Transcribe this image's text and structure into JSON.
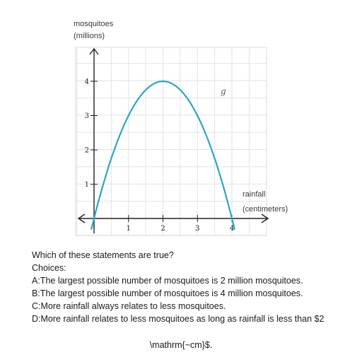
{
  "chart_data": {
    "type": "line",
    "y_axis_label_line1": "mosquitoes",
    "y_axis_label_line2": "(millions)",
    "x_axis_label_line1": "rainfall",
    "x_axis_label_line2": "(centimeters)",
    "x_ticks": [
      "1",
      "2",
      "3",
      "4"
    ],
    "y_ticks": [
      "1",
      "2",
      "3",
      "4"
    ],
    "xlim": [
      0,
      5
    ],
    "ylim": [
      0,
      5
    ],
    "grid": true,
    "series": [
      {
        "name": "g",
        "color": "#2aa7c5",
        "function": "y = 4x - x^2",
        "vertex": [
          2,
          4
        ],
        "x_intercepts": [
          0,
          4
        ]
      }
    ]
  },
  "question": {
    "prompt": "Which of these statements are true?",
    "choices_header": "Choices:",
    "choices": [
      "A:The largest possible number of mosquitoes is 2 million mosquitoes.",
      "B:The largest possible number of mosquitoes is 4 million mosquitoes.",
      "C:More rainfall always relates to less mosquitoes.",
      "D:More rainfall relates to less mosquitoes as long as rainfall is less than $2"
    ],
    "tail": "\\mathrm{~cm}$."
  }
}
